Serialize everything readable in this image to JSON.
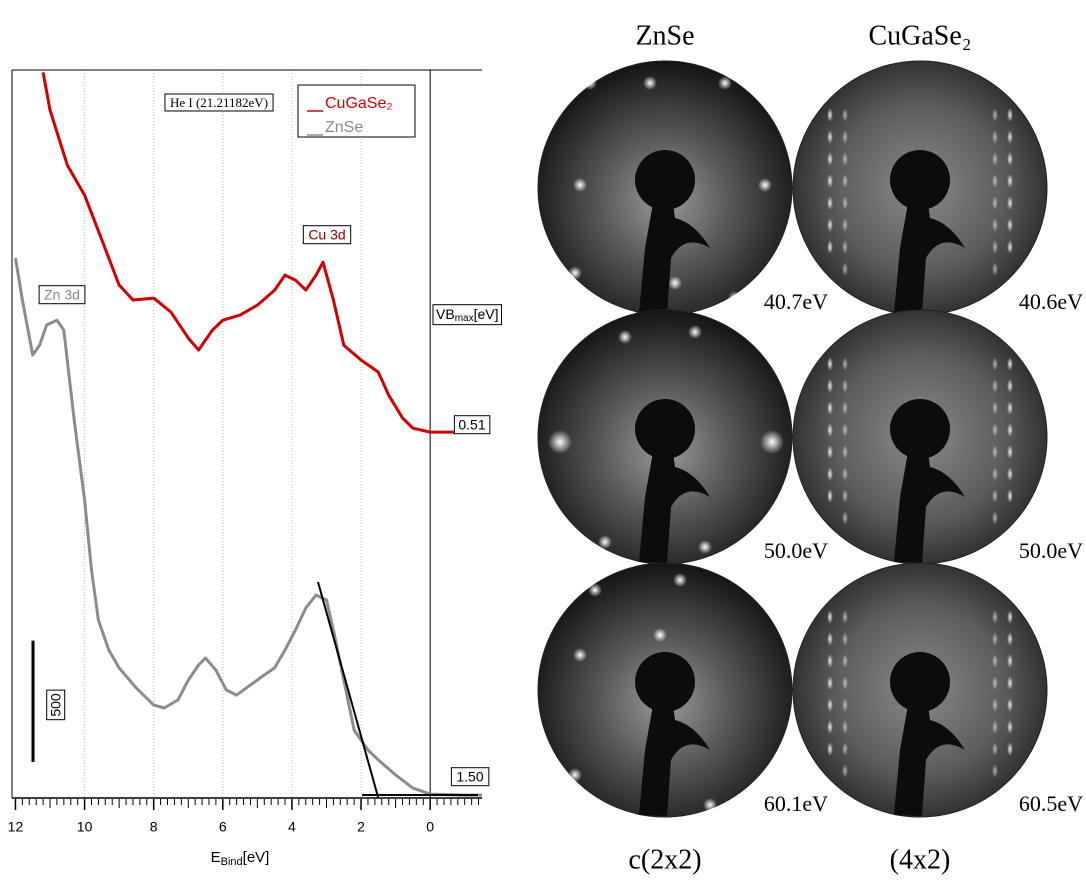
{
  "chart_data": {
    "type": "line",
    "x_label": [
      "E",
      "Bind",
      "[eV]"
    ],
    "xlim": [
      12.1,
      -1.5
    ],
    "xticks": [
      12,
      10,
      8,
      6,
      4,
      2,
      0
    ],
    "ylim": [
      0,
      3000
    ],
    "grid": true,
    "annotations": [
      "He I (21.21182eV)",
      "Cu 3d",
      "Zn 3d"
    ],
    "vb_label": [
      "VB",
      "max",
      "[eV]"
    ],
    "vbmax": [
      0.51,
      {
        "value": 1.5,
        "label": "1.50"
      }
    ],
    "scale_bar": 500,
    "series": [
      {
        "name": "CuGaSe₂",
        "color": "#d40000",
        "x": [
          11.2,
          11.0,
          10.5,
          10.0,
          9.5,
          9.0,
          8.6,
          8.0,
          7.5,
          7.0,
          6.7,
          6.3,
          6.0,
          5.5,
          5.0,
          4.5,
          4.2,
          3.9,
          3.6,
          3.3,
          3.1,
          2.8,
          2.5,
          2.0,
          1.5,
          1.2,
          0.8,
          0.5,
          0.0,
          -0.7
        ],
        "values": [
          2990,
          2835,
          2608,
          2484,
          2299,
          2114,
          2052,
          2060,
          2002,
          1895,
          1846,
          1928,
          1969,
          1990,
          2031,
          2093,
          2155,
          2134,
          2093,
          2155,
          2208,
          2052,
          1866,
          1805,
          1755,
          1660,
          1566,
          1524,
          1508,
          1508
        ]
      },
      {
        "name": "ZnSe",
        "color": "#8c8c8c",
        "x": [
          12.0,
          11.8,
          11.5,
          11.3,
          11.1,
          10.8,
          10.6,
          10.3,
          10.0,
          9.8,
          9.6,
          9.3,
          9.0,
          8.5,
          8.0,
          7.7,
          7.3,
          7.0,
          6.7,
          6.5,
          6.2,
          5.9,
          5.6,
          5.2,
          4.8,
          4.5,
          4.2,
          3.9,
          3.6,
          3.3,
          3.0,
          2.8,
          2.5,
          2.2,
          1.8,
          1.5,
          1.0,
          0.5,
          0.0,
          -1.0,
          -1.5
        ],
        "values": [
          2225,
          2052,
          1825,
          1866,
          1949,
          1969,
          1928,
          1557,
          1228,
          939,
          733,
          610,
          536,
          453,
          383,
          371,
          404,
          486,
          548,
          577,
          527,
          445,
          424,
          466,
          507,
          536,
          610,
          692,
          783,
          836,
          816,
          692,
          486,
          280,
          198,
          157,
          95,
          41,
          16,
          12,
          12
        ]
      }
    ]
  },
  "leed": {
    "columns": [
      {
        "title": "ZnSe",
        "structure": "c(2x2)",
        "energies": [
          "40.7eV",
          "50.0eV",
          "60.1eV"
        ]
      },
      {
        "title": "CuGaSe₂",
        "structure": "(4x2)",
        "energies": [
          "40.6eV",
          "50.0eV",
          "60.5eV"
        ]
      }
    ]
  }
}
